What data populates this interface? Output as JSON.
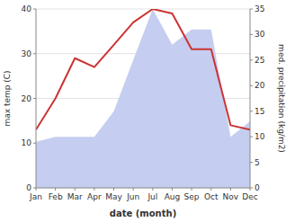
{
  "chart_data": {
    "type": "line",
    "categories": [
      "Jan",
      "Feb",
      "Mar",
      "Apr",
      "May",
      "Jun",
      "Jul",
      "Aug",
      "Sep",
      "Oct",
      "Nov",
      "Dec"
    ],
    "x_label": "date (month)",
    "y_label": "max temp (C)",
    "y2_label": "med. precipitation (kg/m2)",
    "series": [
      {
        "type": "area",
        "axis": "y2",
        "color": "#c5cef0",
        "values": [
          9,
          10,
          10,
          10,
          15,
          25,
          35,
          28,
          31,
          31,
          10,
          13
        ]
      },
      {
        "type": "line",
        "color": "#cc3333",
        "values": [
          13,
          20,
          29,
          27,
          32,
          37,
          40,
          39,
          31,
          31,
          14,
          13
        ]
      }
    ],
    "ylim": [
      0,
      40
    ],
    "yticks": [
      0,
      10,
      20,
      30,
      40
    ],
    "y2lim": [
      0,
      35
    ],
    "y2ticks": [
      0,
      5,
      10,
      15,
      20,
      25,
      30,
      35
    ],
    "grid": true
  }
}
